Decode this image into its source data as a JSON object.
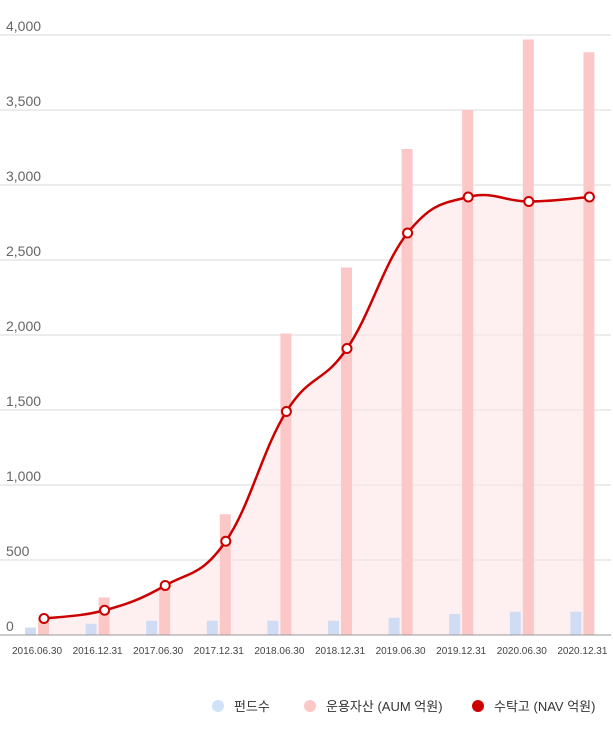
{
  "chart_data": {
    "type": "bar",
    "categories": [
      "2016.06.30",
      "2016.12.31",
      "2017.06.30",
      "2017.12.31",
      "2018.06.30",
      "2018.12.31",
      "2019.06.30",
      "2019.12.31",
      "2020.06.30",
      "2020.12.31"
    ],
    "ylim": [
      0,
      4000
    ],
    "yticks": [
      0,
      500,
      1000,
      1500,
      2000,
      2500,
      3000,
      3500,
      4000
    ],
    "ytick_labels": [
      "0",
      "500",
      "1,000",
      "1,500",
      "2,000",
      "2,500",
      "3,000",
      "3,500",
      "4,000"
    ],
    "grid": true,
    "legend_position": "bottom-right",
    "series": [
      {
        "name": "펀드수",
        "type": "bar",
        "color": "#cfdcf3",
        "values": [
          50,
          75,
          95,
          95,
          95,
          95,
          115,
          140,
          155,
          155
        ]
      },
      {
        "name": "운용자산 (AUM 억원)",
        "type": "bar",
        "color": "#fcc7c7",
        "values": [
          110,
          250,
          320,
          805,
          2010,
          2450,
          3240,
          3500,
          3970,
          3885
        ]
      },
      {
        "name": "수탁고 (NAV 억원)",
        "type": "line",
        "color": "#cc0000",
        "values": [
          110,
          165,
          330,
          625,
          1490,
          1910,
          2680,
          2920,
          2890,
          2920
        ]
      }
    ]
  }
}
